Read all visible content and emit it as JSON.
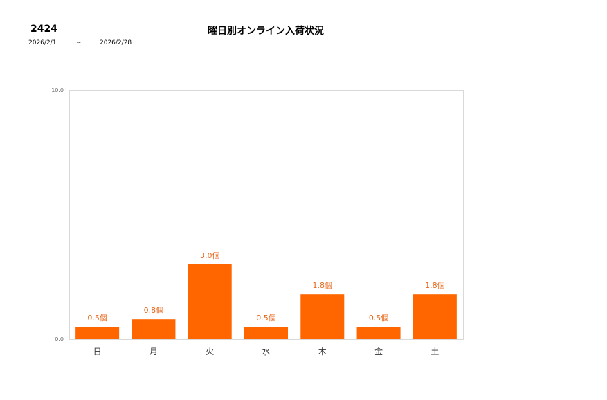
{
  "header": {
    "code": "2424",
    "title": "曜日別オンライン入荷状況",
    "date_from": "2026/2/1",
    "date_sep": "~",
    "date_to": "2026/2/28"
  },
  "chart_data": {
    "type": "bar",
    "title": "曜日別オンライン入荷状況",
    "categories": [
      "日",
      "月",
      "火",
      "水",
      "木",
      "金",
      "土"
    ],
    "values": [
      0.5,
      0.8,
      3.0,
      0.5,
      1.8,
      0.5,
      1.8
    ],
    "data_labels": [
      "0.5個",
      "0.8個",
      "3.0個",
      "0.5個",
      "1.8個",
      "0.5個",
      "1.8個"
    ],
    "yticks": [
      "0.0",
      "10.0"
    ],
    "ylim": [
      0,
      10
    ],
    "bar_color": "#ff6600",
    "label_color": "#e8671a",
    "grid": false,
    "legend": "none"
  }
}
